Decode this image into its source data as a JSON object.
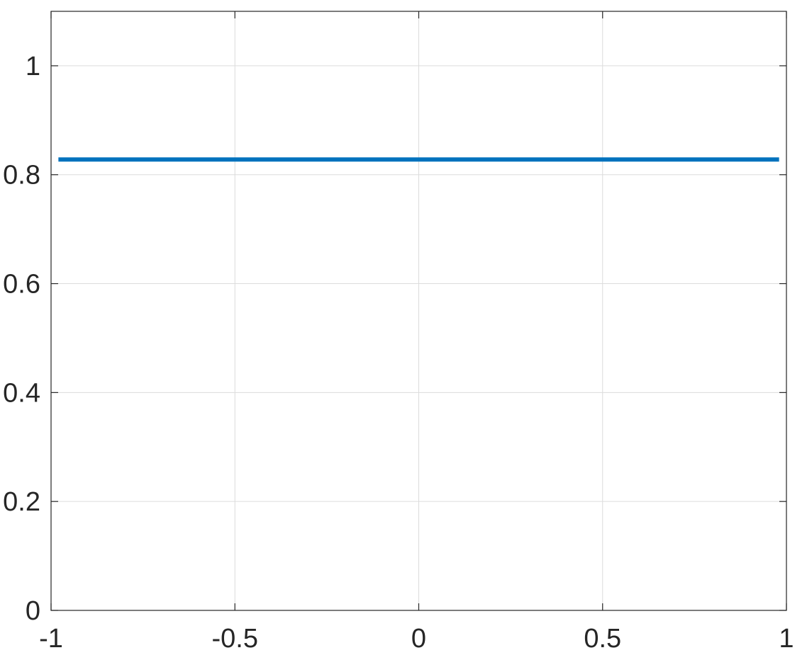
{
  "chart_data": {
    "type": "line",
    "title": "",
    "xlabel": "",
    "ylabel": "",
    "xlim": [
      -1,
      1
    ],
    "ylim": [
      0,
      1.1
    ],
    "grid": true,
    "x_ticks": [
      -1,
      -0.5,
      0,
      0.5,
      1
    ],
    "x_tick_labels": [
      "-1",
      "-0.5",
      "0",
      "0.5",
      "1"
    ],
    "y_ticks": [
      0,
      0.2,
      0.4,
      0.6,
      0.8,
      1
    ],
    "y_tick_labels": [
      "0",
      "0.2",
      "0.4",
      "0.6",
      "0.8",
      "1"
    ],
    "series": [
      {
        "color": "#0072bd",
        "x": [
          -0.98,
          0.98
        ],
        "y": [
          0.828,
          0.828
        ]
      }
    ]
  }
}
